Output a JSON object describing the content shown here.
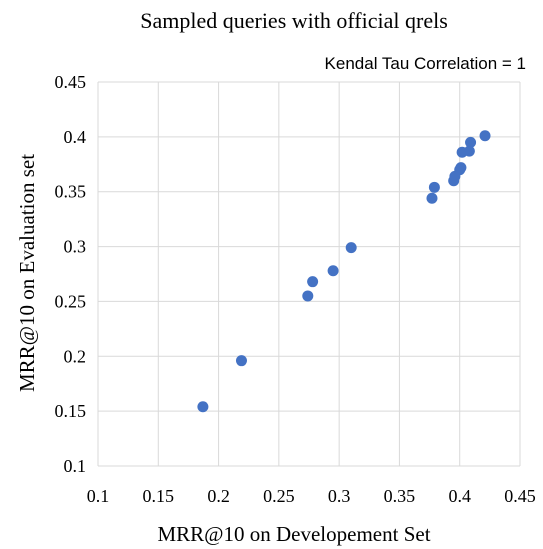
{
  "chart_data": {
    "type": "scatter",
    "title": "Sampled queries with official qrels",
    "annotation": "Kendal Tau Correlation = 1",
    "xlabel": "MRR@10 on Developement Set",
    "ylabel": "MRR@10 on Evaluation set",
    "xlim": [
      0.1,
      0.45
    ],
    "ylim": [
      0.1,
      0.45
    ],
    "x_ticks": [
      0.1,
      0.15,
      0.2,
      0.25,
      0.3,
      0.35,
      0.4,
      0.45
    ],
    "y_ticks": [
      0.1,
      0.15,
      0.2,
      0.25,
      0.3,
      0.35,
      0.4,
      0.45
    ],
    "x_tick_labels": [
      "0.1",
      "0.15",
      "0.2",
      "0.25",
      "0.3",
      "0.35",
      "0.4",
      "0.45"
    ],
    "y_tick_labels": [
      "0.1",
      "0.15",
      "0.2",
      "0.25",
      "0.3",
      "0.35",
      "0.4",
      "0.45"
    ],
    "grid": true,
    "marker_color": "#4472c4",
    "points": [
      {
        "x": 0.187,
        "y": 0.154
      },
      {
        "x": 0.219,
        "y": 0.196
      },
      {
        "x": 0.274,
        "y": 0.255
      },
      {
        "x": 0.278,
        "y": 0.268
      },
      {
        "x": 0.295,
        "y": 0.278
      },
      {
        "x": 0.31,
        "y": 0.299
      },
      {
        "x": 0.377,
        "y": 0.344
      },
      {
        "x": 0.379,
        "y": 0.354
      },
      {
        "x": 0.395,
        "y": 0.36
      },
      {
        "x": 0.396,
        "y": 0.364
      },
      {
        "x": 0.4,
        "y": 0.37
      },
      {
        "x": 0.401,
        "y": 0.372
      },
      {
        "x": 0.402,
        "y": 0.386
      },
      {
        "x": 0.408,
        "y": 0.387
      },
      {
        "x": 0.409,
        "y": 0.395
      },
      {
        "x": 0.421,
        "y": 0.401
      }
    ]
  }
}
